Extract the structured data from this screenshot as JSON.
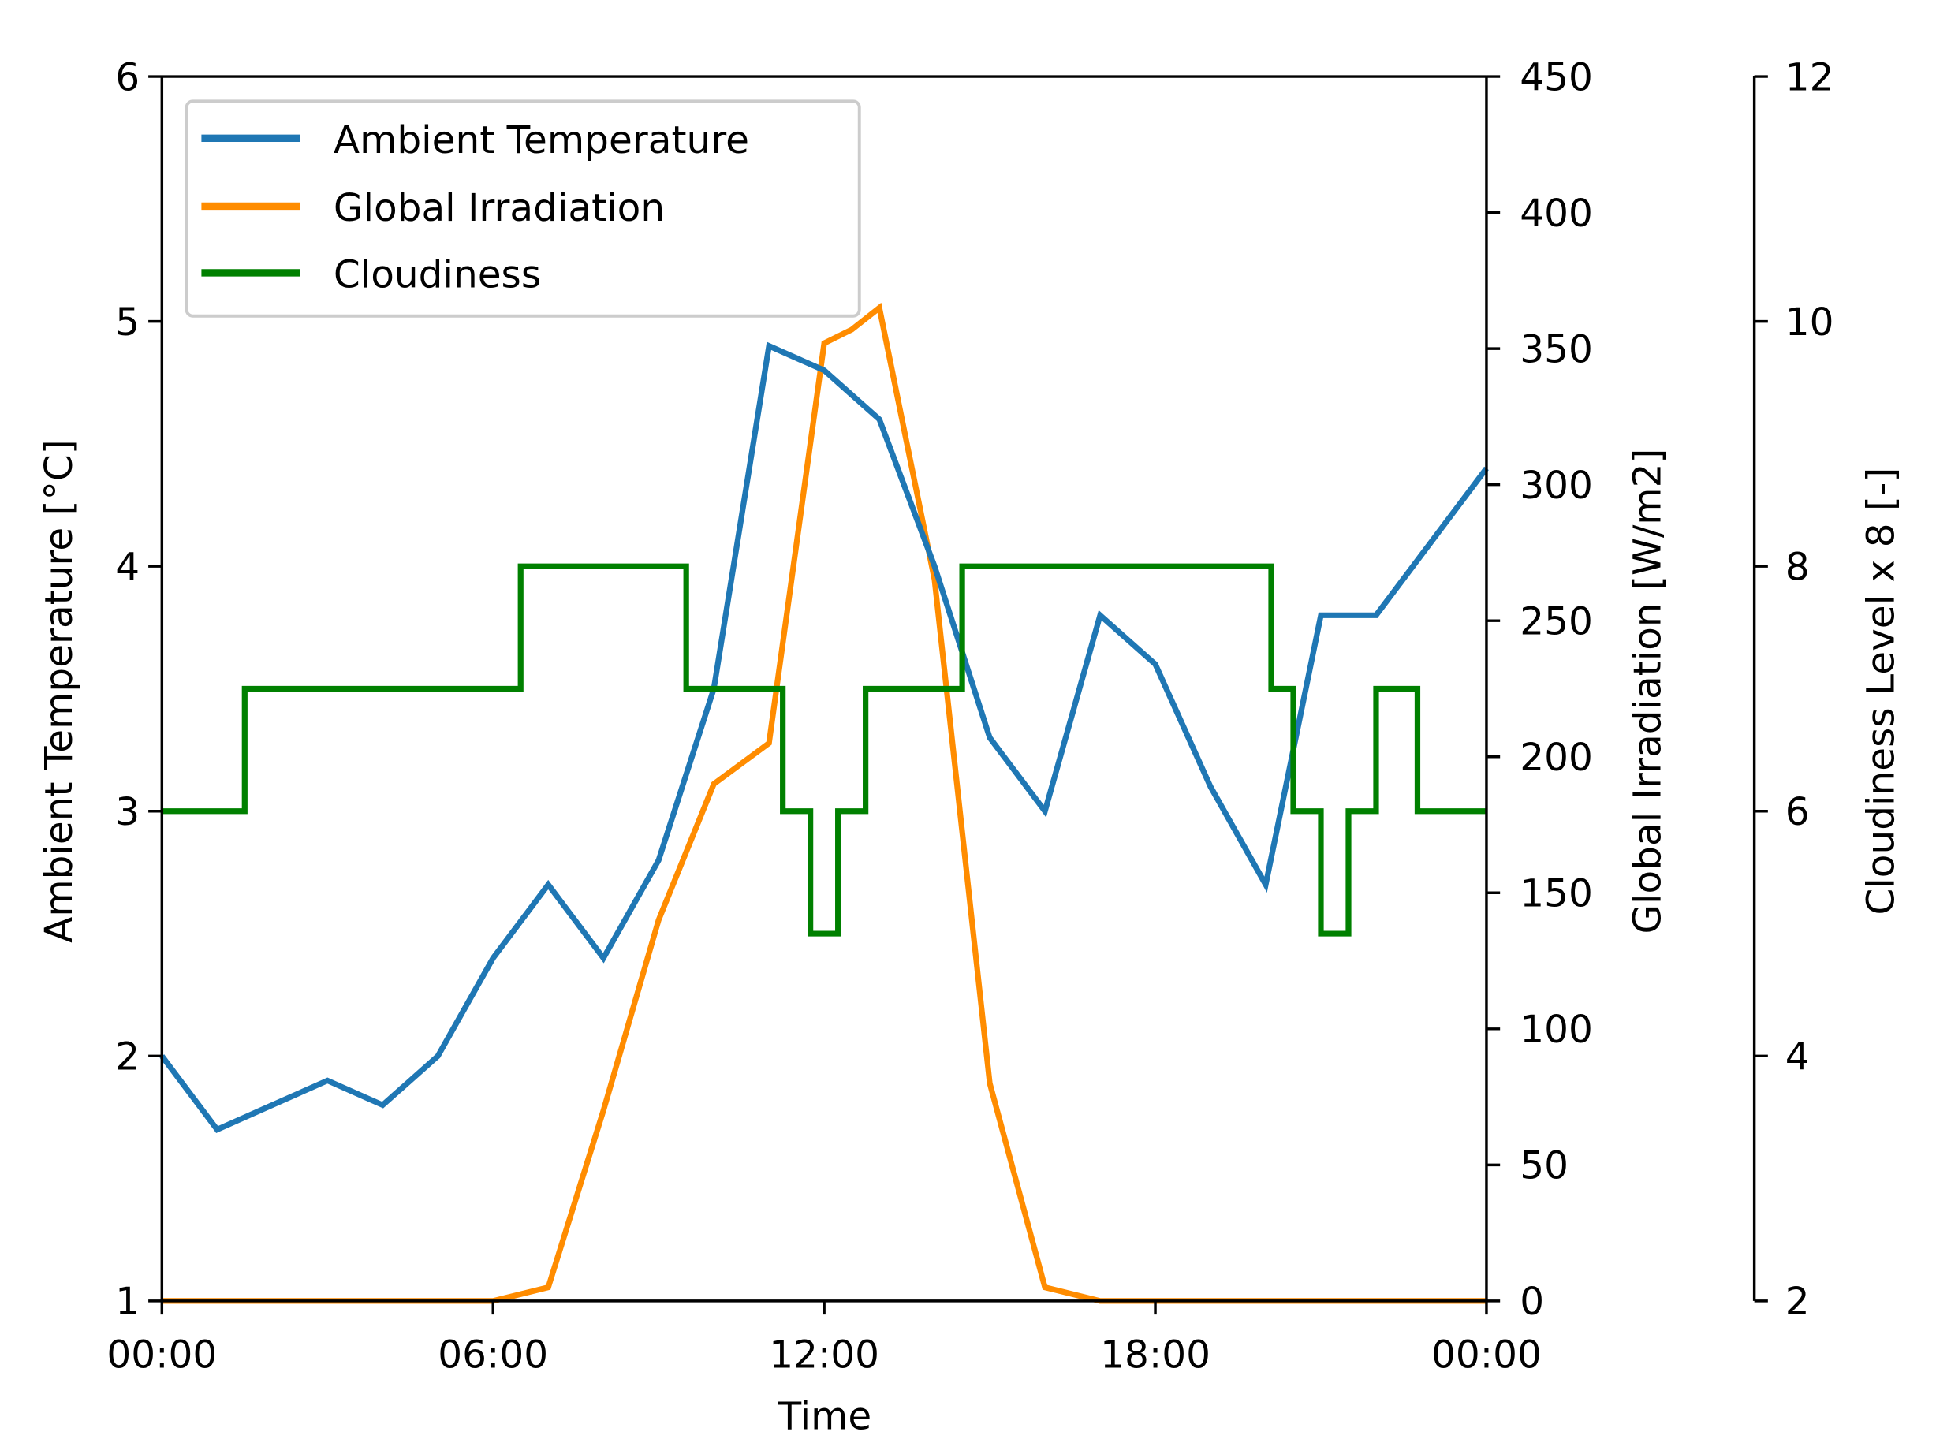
{
  "chart_data": {
    "type": "line",
    "title": "",
    "xlabel": "Time",
    "x_ticks": [
      "00:00",
      "06:00",
      "12:00",
      "18:00",
      "00:00"
    ],
    "legend": [
      "Ambient Temperature",
      "Global Irradiation",
      "Cloudiness"
    ],
    "legend_position": "upper left",
    "grid": false,
    "axes": [
      {
        "side": "left",
        "label": "Ambient Temperature [°C]",
        "ylim": [
          1,
          6
        ],
        "ticks": [
          "1",
          "2",
          "3",
          "4",
          "5",
          "6"
        ]
      },
      {
        "side": "right",
        "label": "Global Irradiation [W/m2]",
        "ylim": [
          0,
          450
        ],
        "ticks": [
          "0",
          "50",
          "100",
          "150",
          "200",
          "250",
          "300",
          "350",
          "400",
          "450"
        ]
      },
      {
        "side": "right-offset",
        "label": "Cloudiness Level x 8 [-]",
        "ylim": [
          2,
          12
        ],
        "ticks": [
          "2",
          "4",
          "6",
          "8",
          "10",
          "12"
        ]
      }
    ],
    "series": [
      {
        "name": "Ambient Temperature",
        "axis": "left",
        "color": "#1f77b4",
        "x_hours": [
          0,
          1,
          2,
          3,
          4,
          5,
          6,
          7,
          8,
          9,
          10,
          11,
          12,
          13,
          14,
          15,
          16,
          17,
          18,
          19,
          20,
          21,
          22,
          23,
          24
        ],
        "values": [
          2.0,
          1.7,
          1.8,
          1.9,
          1.8,
          2.0,
          2.4,
          2.7,
          2.4,
          2.8,
          3.5,
          4.9,
          4.8,
          4.6,
          4.0,
          3.3,
          3.0,
          3.8,
          3.6,
          3.1,
          2.7,
          3.8,
          3.8,
          4.1,
          4.4
        ]
      },
      {
        "name": "Global Irradiation",
        "axis": "right",
        "color": "#ff8c00",
        "x_hours": [
          0,
          1,
          2,
          3,
          4,
          5,
          6,
          7,
          8,
          9,
          10,
          11,
          12,
          12.5,
          13,
          14,
          15,
          16,
          17,
          18,
          19,
          20,
          21,
          22,
          23,
          24
        ],
        "values": [
          0,
          0,
          0,
          0,
          0,
          0,
          0,
          5,
          70,
          140,
          190,
          205,
          352,
          357,
          365,
          265,
          80,
          5,
          0,
          0,
          0,
          0,
          0,
          0,
          0,
          0
        ]
      },
      {
        "name": "Cloudiness",
        "axis": "right-offset",
        "color": "#008000",
        "step": true,
        "x_hours": [
          0,
          1.5,
          6.5,
          9.5,
          11.25,
          11.75,
          12.25,
          12.75,
          14.5,
          20.1,
          20.5,
          21.0,
          21.5,
          22.0,
          22.75,
          24
        ],
        "values": [
          6,
          7,
          8,
          7,
          6,
          5,
          6,
          7,
          8,
          7,
          6,
          5,
          6,
          7,
          6,
          6
        ]
      }
    ]
  }
}
